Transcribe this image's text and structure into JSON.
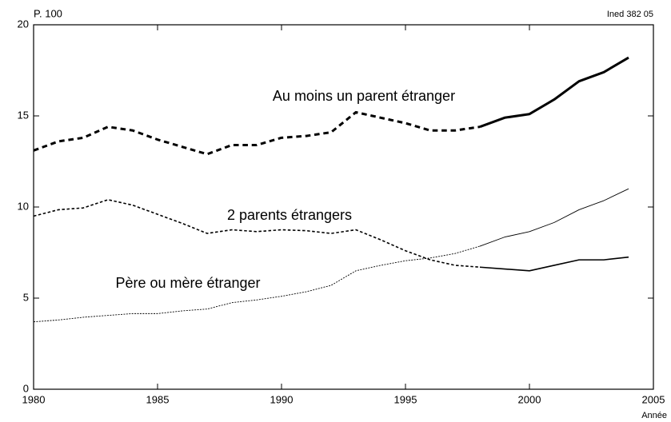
{
  "chart_data": {
    "type": "line",
    "ylabel": "P. 100",
    "source": "Ined 382 05",
    "xlabel": "Année",
    "x": [
      1980,
      1981,
      1982,
      1983,
      1984,
      1985,
      1986,
      1987,
      1988,
      1989,
      1990,
      1991,
      1992,
      1993,
      1994,
      1995,
      1996,
      1997,
      1998,
      1999,
      2000,
      2001,
      2002,
      2003,
      2004
    ],
    "dashed_before": 1998,
    "series": [
      {
        "name": "Au moins un parent étranger",
        "color": "#000000",
        "width": 3,
        "values": [
          13.1,
          13.6,
          13.8,
          14.4,
          14.2,
          13.7,
          13.3,
          12.9,
          13.4,
          13.4,
          13.8,
          13.9,
          14.1,
          15.2,
          14.9,
          14.6,
          14.2,
          14.2,
          14.4,
          14.9,
          15.1,
          15.9,
          16.9,
          17.4,
          18.2
        ]
      },
      {
        "name": "2 parents étrangers",
        "color": "#000000",
        "width": 1.6,
        "values": [
          9.5,
          9.85,
          9.95,
          10.4,
          10.1,
          9.6,
          9.1,
          8.55,
          8.75,
          8.65,
          8.75,
          8.7,
          8.55,
          8.75,
          8.2,
          7.6,
          7.1,
          6.8,
          6.7,
          6.6,
          6.5,
          6.8,
          7.1,
          7.1,
          7.25
        ]
      },
      {
        "name": "Père ou mère étranger",
        "color": "#000000",
        "width": 0.9,
        "values": [
          3.7,
          3.8,
          3.95,
          4.05,
          4.15,
          4.15,
          4.3,
          4.4,
          4.75,
          4.9,
          5.1,
          5.35,
          5.7,
          6.5,
          6.8,
          7.05,
          7.2,
          7.45,
          7.85,
          8.35,
          8.65,
          9.15,
          9.85,
          10.35,
          11.0
        ]
      }
    ],
    "xlim": [
      1980,
      2005
    ],
    "xticks": [
      1980,
      1985,
      1990,
      1995,
      2000,
      2005
    ],
    "ylim": [
      0,
      20
    ],
    "yticks": [
      0,
      5,
      10,
      15,
      20
    ],
    "grid": false
  }
}
